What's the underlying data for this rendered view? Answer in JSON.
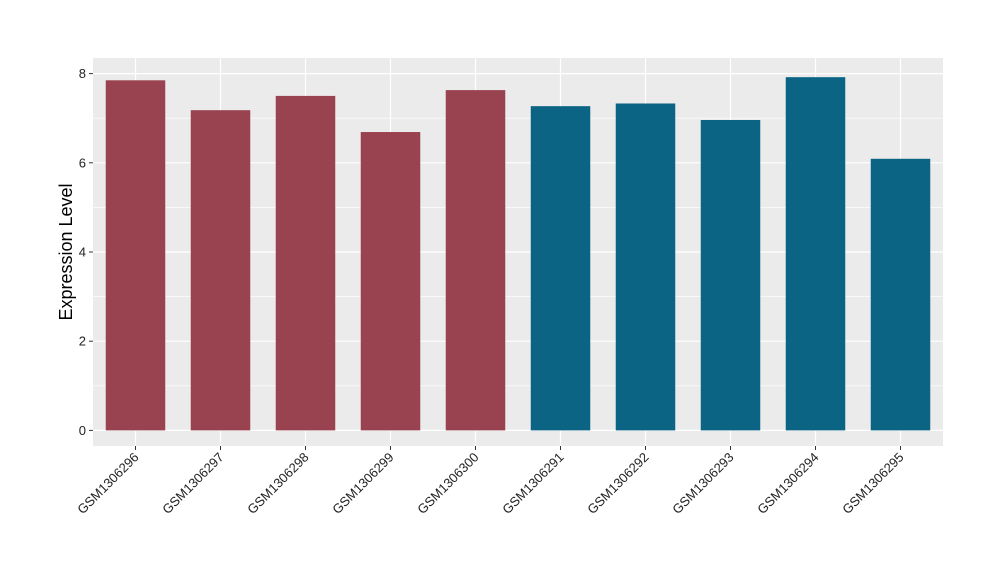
{
  "chart_data": {
    "type": "bar",
    "title": "",
    "xlabel": "",
    "ylabel": "Expression Level",
    "ylim": [
      -0.35,
      8.35
    ],
    "yticks": [
      0,
      2,
      4,
      6,
      8
    ],
    "grid": true,
    "categories": [
      "GSM1306296",
      "GSM1306297",
      "GSM1306298",
      "GSM1306299",
      "GSM1306300",
      "GSM1306291",
      "GSM1306292",
      "GSM1306293",
      "GSM1306294",
      "GSM1306295"
    ],
    "values": [
      7.85,
      7.18,
      7.5,
      6.69,
      7.63,
      7.27,
      7.33,
      6.96,
      7.92,
      6.09
    ],
    "bar_colors": [
      "#9a4350",
      "#9a4350",
      "#9a4350",
      "#9a4350",
      "#9a4350",
      "#0c6485",
      "#0c6485",
      "#0c6485",
      "#0c6485",
      "#0c6485"
    ],
    "panel_background": "#ebebeb",
    "grid_color": "#ffffff"
  }
}
